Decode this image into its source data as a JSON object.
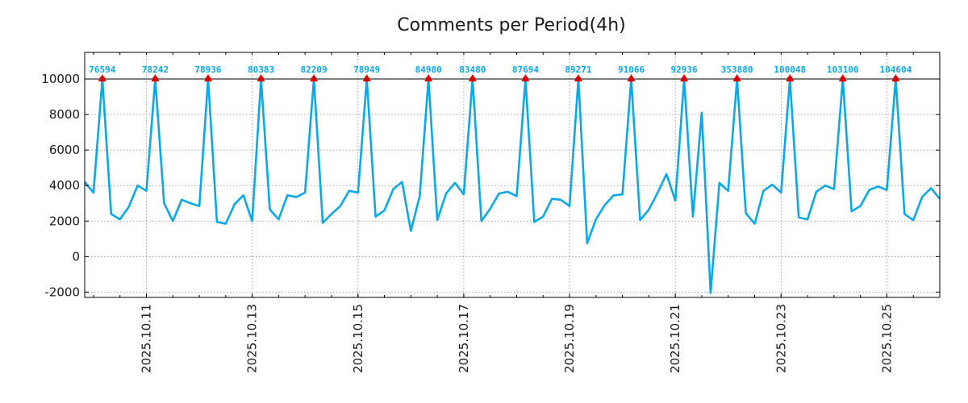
{
  "chart_data": {
    "type": "line",
    "title": "Comments per Period(4h)",
    "xlabel": "",
    "ylabel": "",
    "ylim": [
      -2300,
      11500
    ],
    "yticks": [
      -2000,
      0,
      2000,
      4000,
      6000,
      8000,
      10000
    ],
    "xlim": [
      0,
      97
    ],
    "xticks": [
      {
        "pos": 7,
        "label": "2025.10.11"
      },
      {
        "pos": 19,
        "label": "2025.10.13"
      },
      {
        "pos": 31,
        "label": "2025.10.15"
      },
      {
        "pos": 43,
        "label": "2025.10.17"
      },
      {
        "pos": 55,
        "label": "2025.10.19"
      },
      {
        "pos": 67,
        "label": "2025.10.21"
      },
      {
        "pos": 79,
        "label": "2025.10.23"
      },
      {
        "pos": 91,
        "label": "2025.10.25"
      }
    ],
    "grid": true,
    "cap_line": 10000,
    "colors": {
      "line": "#0aa8e8",
      "marker": "#dd0000",
      "label": "#0aa8e8",
      "cap": "#000000",
      "grid": "#888888"
    },
    "series": [
      {
        "name": "comments",
        "x": [
          0,
          1,
          2,
          3,
          4,
          5,
          6,
          7,
          8,
          9,
          10,
          11,
          12,
          13,
          14,
          15,
          16,
          17,
          18,
          19,
          20,
          21,
          22,
          23,
          24,
          25,
          26,
          27,
          28,
          29,
          30,
          31,
          32,
          33,
          34,
          35,
          36,
          37,
          38,
          39,
          40,
          41,
          42,
          43,
          44,
          45,
          46,
          47,
          48,
          49,
          50,
          51,
          52,
          53,
          54,
          55,
          56,
          57,
          58,
          59,
          60,
          61,
          62,
          63,
          64,
          65,
          66,
          67,
          68,
          69,
          70,
          71,
          72,
          73,
          74,
          75,
          76,
          77,
          78,
          79,
          80,
          81,
          82,
          83,
          84,
          85,
          86,
          87,
          88,
          89,
          90,
          91,
          92,
          93,
          94,
          95,
          96,
          97
        ],
        "values": [
          4200,
          3600,
          10000,
          2400,
          2100,
          2800,
          4000,
          3700,
          10000,
          3000,
          2000,
          3200,
          3000,
          2850,
          10000,
          1950,
          1850,
          2950,
          3450,
          2000,
          10000,
          2650,
          2100,
          3450,
          3350,
          3600,
          10000,
          1900,
          2400,
          2850,
          3700,
          3600,
          10000,
          2250,
          2600,
          3800,
          4200,
          1450,
          3400,
          10000,
          2050,
          3550,
          4150,
          3500,
          10000,
          2000,
          2700,
          3550,
          3650,
          3400,
          10000,
          1950,
          2250,
          3250,
          3200,
          2850,
          10000,
          750,
          2100,
          2900,
          3450,
          3500,
          10000,
          2050,
          2650,
          3600,
          4650,
          3150,
          10000,
          2250,
          8100,
          -2050,
          4150,
          3700,
          10000,
          2450,
          1850,
          3700,
          4050,
          3600,
          10000,
          2200,
          2100,
          3650,
          4000,
          3800,
          10000,
          2550,
          2850,
          3750,
          3950,
          3750,
          10000,
          2400,
          2050,
          3350,
          3850,
          3250
        ]
      }
    ],
    "peaks": [
      {
        "x": 2,
        "label": "76594"
      },
      {
        "x": 8,
        "label": "78242"
      },
      {
        "x": 14,
        "label": "78936"
      },
      {
        "x": 20,
        "label": "80383"
      },
      {
        "x": 26,
        "label": "82209"
      },
      {
        "x": 32,
        "label": "78949"
      },
      {
        "x": 39,
        "label": "84980"
      },
      {
        "x": 44,
        "label": "83480"
      },
      {
        "x": 50,
        "label": "87694"
      },
      {
        "x": 56,
        "label": "89271"
      },
      {
        "x": 62,
        "label": "91066"
      },
      {
        "x": 68,
        "label": "92936"
      },
      {
        "x": 74,
        "label": "353880"
      },
      {
        "x": 80,
        "label": "100048"
      },
      {
        "x": 86,
        "label": "103100"
      },
      {
        "x": 92,
        "label": "104604"
      }
    ]
  }
}
